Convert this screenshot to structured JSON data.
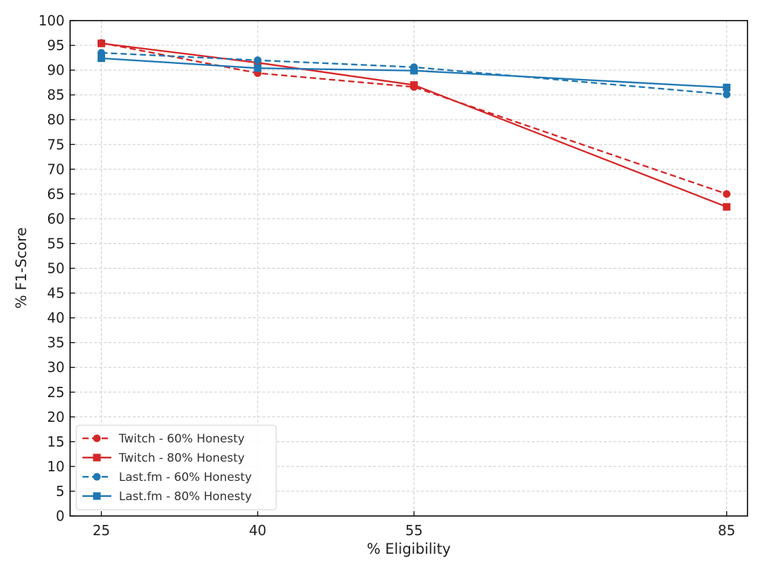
{
  "chart_data": {
    "type": "line",
    "xlabel": "% Eligibility",
    "ylabel": "% F1-Score",
    "x": [
      25,
      40,
      55,
      85
    ],
    "xticks": [
      25,
      40,
      55,
      85
    ],
    "xlim": [
      22,
      87
    ],
    "ylim": [
      0,
      100
    ],
    "yticks": [
      0,
      5,
      10,
      15,
      20,
      25,
      30,
      35,
      40,
      45,
      50,
      55,
      60,
      65,
      70,
      75,
      80,
      85,
      90,
      95,
      100
    ],
    "grid": true,
    "legend_position": "lower-left",
    "series": [
      {
        "name": "Twitch - 60% Honesty",
        "color": "#d62728",
        "linestyle": "dashed",
        "marker": "circle",
        "values": [
          95.5,
          89.4,
          86.6,
          65.0
        ]
      },
      {
        "name": "Twitch - 80% Honesty",
        "color": "#d62728",
        "linestyle": "solid",
        "marker": "square",
        "values": [
          95.4,
          91.5,
          87.0,
          62.4
        ]
      },
      {
        "name": "Last.fm - 60% Honesty",
        "color": "#1f77b4",
        "linestyle": "dashed",
        "marker": "circle",
        "values": [
          93.5,
          92.0,
          90.6,
          85.1
        ]
      },
      {
        "name": "Last.fm - 80% Honesty",
        "color": "#1f77b4",
        "linestyle": "solid",
        "marker": "square",
        "values": [
          92.4,
          90.4,
          89.9,
          86.5
        ]
      }
    ]
  }
}
